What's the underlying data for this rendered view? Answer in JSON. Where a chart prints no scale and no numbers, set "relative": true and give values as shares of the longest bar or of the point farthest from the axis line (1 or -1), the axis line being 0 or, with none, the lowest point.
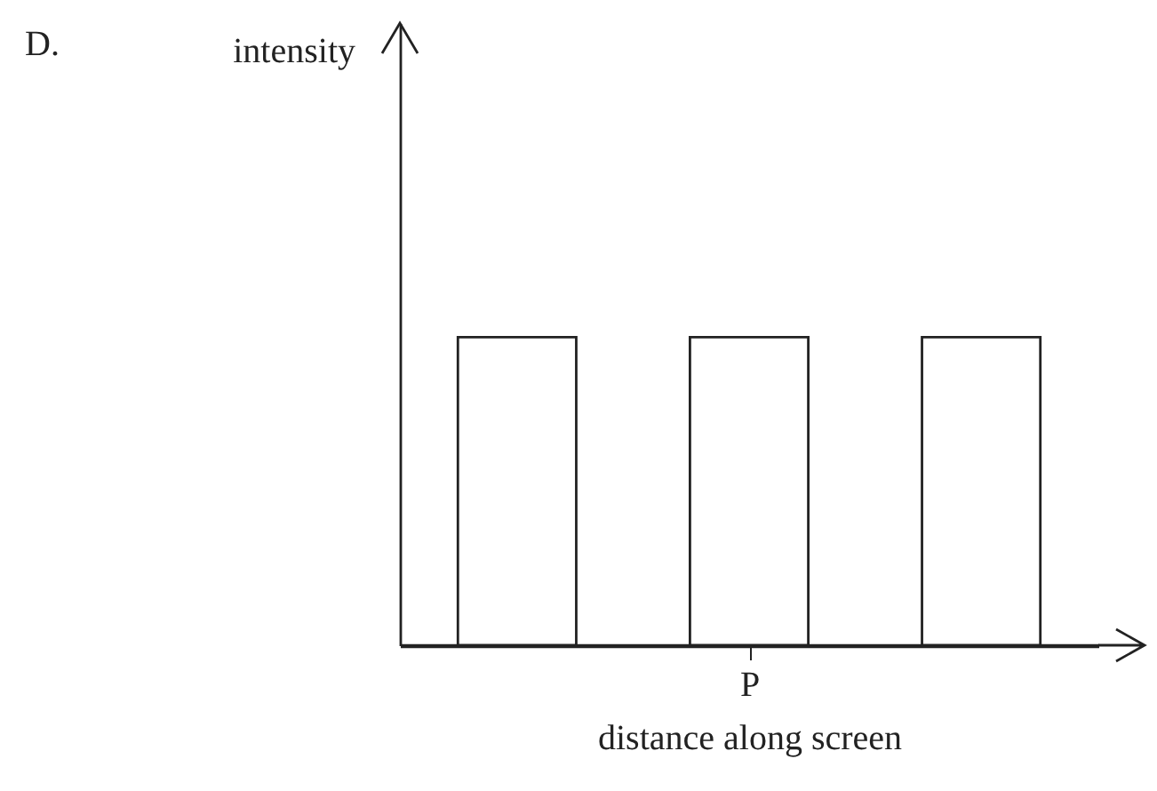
{
  "chart_data": {
    "type": "bar",
    "title": "D.",
    "xlabel": "distance along screen",
    "annotations": [
      "intensity"
    ],
    "relative": true,
    "categories": [
      null,
      "P",
      null
    ],
    "values": [
      1,
      1,
      1
    ],
    "color": "#ffffff"
  }
}
